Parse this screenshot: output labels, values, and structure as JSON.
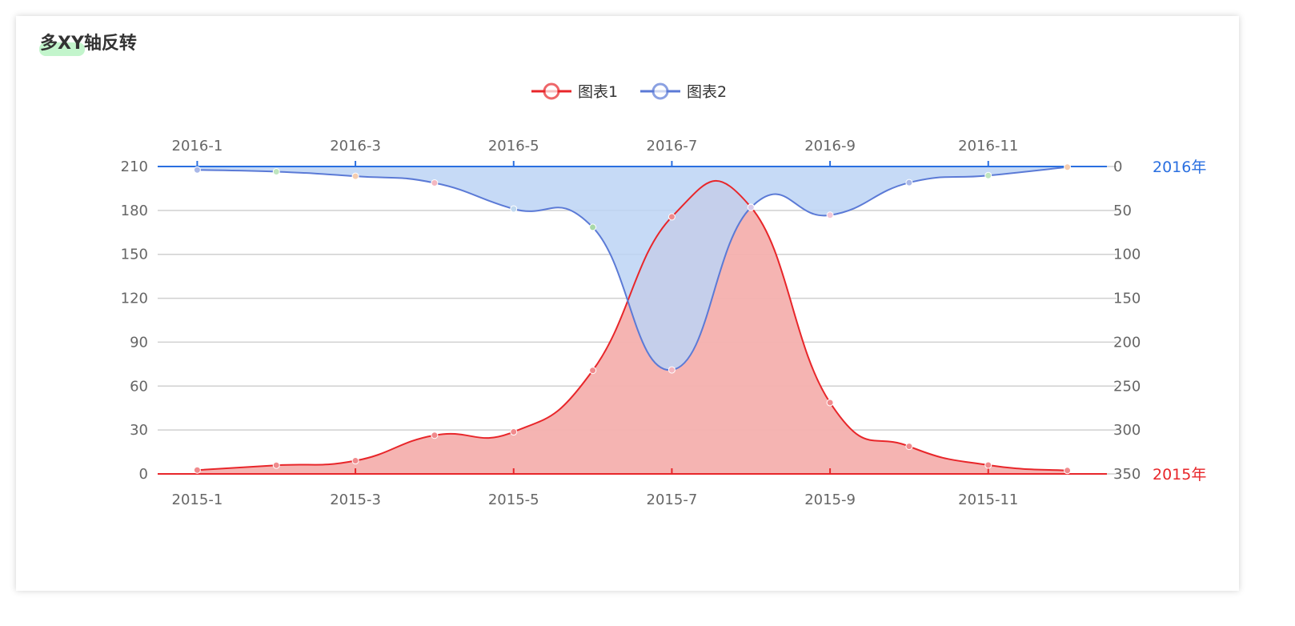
{
  "page": {
    "title": "多XY轴反转"
  },
  "chart_data": {
    "type": "area",
    "legend": {
      "position": "top-center",
      "entries": [
        "图表1",
        "图表2"
      ]
    },
    "series": [
      {
        "name": "图表1",
        "color": "#e8262a",
        "area_color": "#f4b0ae",
        "xAxis": "bottom",
        "yAxis": "left",
        "values": [
          2.6,
          5.9,
          9.0,
          26.4,
          28.7,
          70.7,
          175.6,
          182.2,
          48.7,
          18.8,
          6.0,
          2.3
        ]
      },
      {
        "name": "图表2",
        "color": "#5b7ad6",
        "area_color": "#bcd3f5",
        "xAxis": "top",
        "yAxis": "right",
        "values": [
          3.9,
          5.9,
          11.1,
          18.7,
          48.3,
          69.2,
          231.6,
          46.6,
          55.4,
          18.4,
          10.3,
          0.7
        ]
      }
    ],
    "x_bottom": {
      "categories": [
        "2015-1",
        "2015-2",
        "2015-3",
        "2015-4",
        "2015-5",
        "2015-6",
        "2015-7",
        "2015-8",
        "2015-9",
        "2015-10",
        "2015-11",
        "2015-12"
      ],
      "name": "2015年",
      "color": "#e8262a"
    },
    "x_top": {
      "categories": [
        "2016-1",
        "2016-2",
        "2016-3",
        "2016-4",
        "2016-5",
        "2016-6",
        "2016-7",
        "2016-8",
        "2016-9",
        "2016-10",
        "2016-11",
        "2016-12"
      ],
      "name": "2016年",
      "color": "#2a6fe0"
    },
    "y_left": {
      "min": 0,
      "max": 210,
      "ticks": [
        0,
        30,
        60,
        90,
        120,
        150,
        180,
        210
      ]
    },
    "y_right": {
      "min": 0,
      "max": 350,
      "inverse": true,
      "ticks": [
        0,
        50,
        100,
        150,
        200,
        250,
        300,
        350
      ]
    },
    "grid": true,
    "point_colors": [
      "#a9b8e8",
      "#bfe5bf",
      "#f5cdb0",
      "#f3b7c0",
      "#c0d8ee",
      "#a8d8a8",
      "#f3b7c0",
      "#d8c8e8",
      "#f3c8d8",
      "#a9b8e8",
      "#bfe5bf",
      "#f5cdb0"
    ]
  }
}
